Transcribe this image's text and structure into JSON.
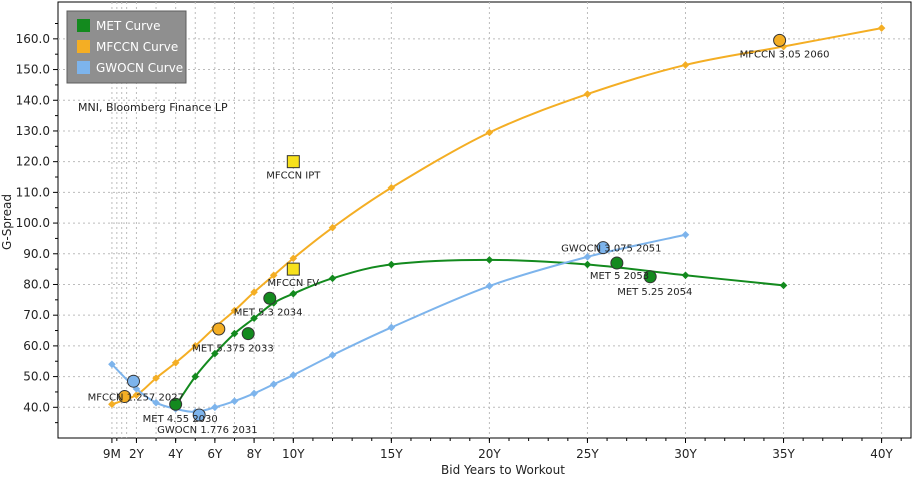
{
  "chart_data": {
    "type": "line",
    "xlabel": "Bid Years to Workout",
    "ylabel": "G-Spread",
    "xlim": [
      -2,
      41.5
    ],
    "ylim": [
      30,
      172
    ],
    "x_ticks": [
      {
        "value": 0.75,
        "label": "9M"
      },
      {
        "value": 2,
        "label": "2Y"
      },
      {
        "value": 4,
        "label": "4Y"
      },
      {
        "value": 6,
        "label": "6Y"
      },
      {
        "value": 8,
        "label": "8Y"
      },
      {
        "value": 10,
        "label": "10Y"
      },
      {
        "value": 15,
        "label": "15Y"
      },
      {
        "value": 20,
        "label": "20Y"
      },
      {
        "value": 25,
        "label": "25Y"
      },
      {
        "value": 30,
        "label": "30Y"
      },
      {
        "value": 35,
        "label": "35Y"
      },
      {
        "value": 40,
        "label": "40Y"
      }
    ],
    "y_ticks": [
      {
        "value": 40,
        "label": "40.0"
      },
      {
        "value": 50,
        "label": "50.0"
      },
      {
        "value": 60,
        "label": "60.0"
      },
      {
        "value": 70,
        "label": "70.0"
      },
      {
        "value": 80,
        "label": "80.0"
      },
      {
        "value": 90,
        "label": "90.0"
      },
      {
        "value": 100,
        "label": "100.0"
      },
      {
        "value": 110,
        "label": "110.0"
      },
      {
        "value": 120,
        "label": "120.0"
      },
      {
        "value": 130,
        "label": "130.0"
      },
      {
        "value": 140,
        "label": "140.0"
      },
      {
        "value": 150,
        "label": "150.0"
      },
      {
        "value": 160,
        "label": "160.0"
      }
    ],
    "source_note": "MNI, Bloomberg Finance LP",
    "legend": {
      "position": "top-left",
      "entries": [
        {
          "label": "MET Curve",
          "color": "#138a1e"
        },
        {
          "label": "MFCCN Curve",
          "color": "#f4ae24"
        },
        {
          "label": "GWOCN Curve",
          "color": "#7db4ec"
        }
      ]
    },
    "series": [
      {
        "name": "MET Curve",
        "color": "#138a1e",
        "marker": "diamond",
        "points": [
          [
            4,
            40.5
          ],
          [
            5,
            50
          ],
          [
            6,
            57.5
          ],
          [
            7,
            64
          ],
          [
            8,
            69
          ],
          [
            9,
            74
          ],
          [
            10,
            77
          ],
          [
            12,
            82
          ],
          [
            15,
            86.5
          ],
          [
            20,
            88
          ],
          [
            25,
            86.5
          ],
          [
            30,
            83
          ],
          [
            35,
            79.7
          ]
        ]
      },
      {
        "name": "MFCCN Curve",
        "color": "#f4ae24",
        "marker": "diamond",
        "points": [
          [
            0.75,
            41
          ],
          [
            2,
            44
          ],
          [
            3,
            49.5
          ],
          [
            4,
            54.5
          ],
          [
            5,
            60
          ],
          [
            6,
            66
          ],
          [
            7,
            71.5
          ],
          [
            8,
            77.5
          ],
          [
            9,
            83
          ],
          [
            10,
            88.5
          ],
          [
            12,
            98.5
          ],
          [
            15,
            111.5
          ],
          [
            20,
            129.5
          ],
          [
            25,
            142
          ],
          [
            30,
            151.5
          ],
          [
            35,
            157.5
          ],
          [
            40,
            163.5
          ]
        ]
      },
      {
        "name": "GWOCN Curve",
        "color": "#7db4ec",
        "marker": "diamond",
        "points": [
          [
            0.75,
            54
          ],
          [
            2,
            46
          ],
          [
            3,
            41.5
          ],
          [
            4,
            39.5
          ],
          [
            5,
            38.5
          ],
          [
            6,
            40
          ],
          [
            7,
            42
          ],
          [
            8,
            44.5
          ],
          [
            9,
            47.5
          ],
          [
            10,
            50.5
          ],
          [
            12,
            57
          ],
          [
            15,
            66
          ],
          [
            20,
            79.5
          ],
          [
            25,
            89
          ],
          [
            30,
            96.2
          ]
        ]
      }
    ],
    "bonds": [
      {
        "label": "MET 4.55 2030",
        "x": 4,
        "y": 41,
        "color": "#138a1e"
      },
      {
        "label": "MET 5.375 2033",
        "x": 7.7,
        "y": 64,
        "color": "#138a1e"
      },
      {
        "label": "MET 5.3 2034",
        "x": 8.8,
        "y": 75.5,
        "color": "#138a1e"
      },
      {
        "label": "MET 5 2053",
        "x": 26.5,
        "y": 87,
        "color": "#138a1e"
      },
      {
        "label": "MET 5.25 2054",
        "x": 28.2,
        "y": 82.5,
        "color": "#138a1e"
      },
      {
        "label": "MFCCN 1.257 2027",
        "x": 1.4,
        "y": 43.5,
        "color": "#f4ae24"
      },
      {
        "label": "MFCCN 3.05 2060",
        "x": 34.8,
        "y": 159.5,
        "color": "#f4ae24"
      },
      {
        "label": "GWOCN 1.776 2031",
        "x": 5.2,
        "y": 37.5,
        "color": "#7db4ec"
      },
      {
        "label": "GWOCN 3.075 2051",
        "x": 25.8,
        "y": 92,
        "color": "#7db4ec"
      },
      {
        "label": "",
        "x": 1.85,
        "y": 48.5,
        "color": "#7db4ec"
      },
      {
        "label": "",
        "x": 6.2,
        "y": 65.5,
        "color": "#f4ae24"
      }
    ],
    "new_issues": [
      {
        "label": "MFCCN IPT",
        "x": 10,
        "y": 120,
        "color": "#f7e11c"
      },
      {
        "label": "MFCCN FV",
        "x": 10,
        "y": 85,
        "color": "#f7e11c"
      }
    ]
  }
}
